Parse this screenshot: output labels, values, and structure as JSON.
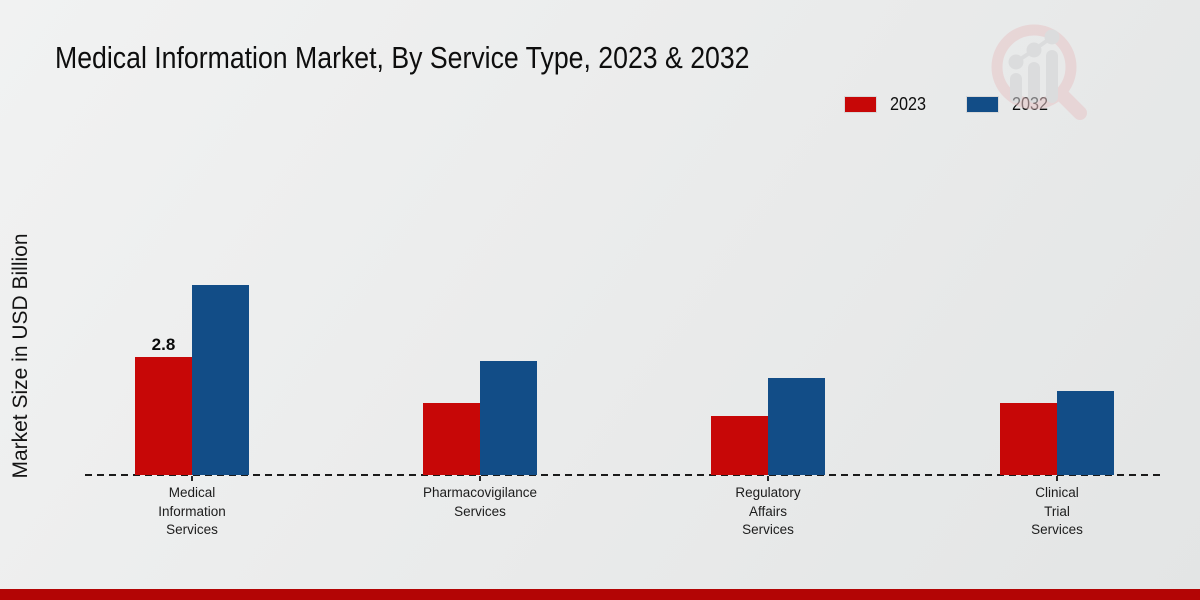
{
  "title": "Medical Information Market, By Service Type, 2023 & 2032",
  "y_axis_label": "Market Size in USD Billion",
  "legend": {
    "items": [
      {
        "label": "2023",
        "color": "#c70707"
      },
      {
        "label": "2032",
        "color": "#124d87"
      }
    ]
  },
  "watermark": {
    "icon": "magnifier-bar-chart-logo"
  },
  "footer": {
    "accent_color": "#b30505"
  },
  "chart_data": {
    "type": "bar",
    "title": "Medical Information Market, By Service Type, 2023 & 2032",
    "categories": [
      "Medical Information Services",
      "Pharmacovigilance Services",
      "Regulatory Affairs Services",
      "Clinical Trial Services"
    ],
    "categories_wrapped": [
      [
        "Medical",
        "Information",
        "Services"
      ],
      [
        "Pharmacovigilance",
        "Services"
      ],
      [
        "Regulatory",
        "Affairs",
        "Services"
      ],
      [
        "Clinical",
        "Trial",
        "Services"
      ]
    ],
    "series": [
      {
        "name": "2023",
        "color": "#c70707",
        "values": [
          2.8,
          1.7,
          1.4,
          1.7
        ]
      },
      {
        "name": "2032",
        "color": "#124d87",
        "values": [
          4.5,
          2.7,
          2.3,
          2.0
        ]
      }
    ],
    "data_labels": [
      {
        "series": "2023",
        "category_index": 0,
        "text": "2.8"
      }
    ],
    "xlabel": "",
    "ylabel": "Market Size in USD Billion",
    "ylim": [
      0,
      5
    ],
    "grid": false,
    "legend_position": "top-right",
    "baseline_style": "dashed"
  }
}
